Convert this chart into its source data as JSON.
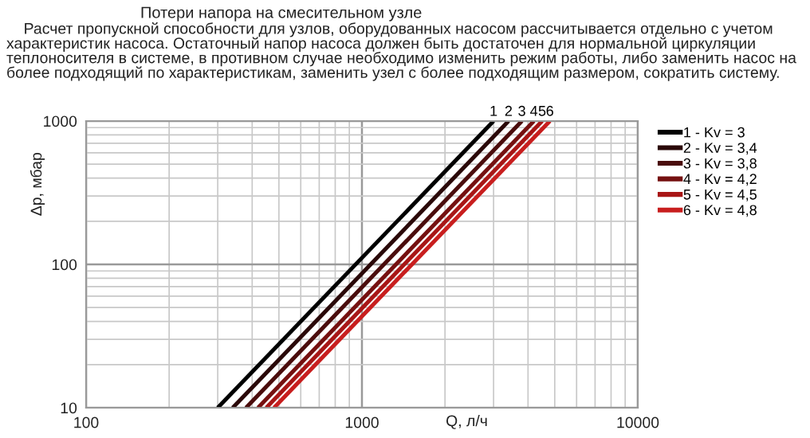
{
  "chart_data": {
    "type": "line",
    "title": "Потери напора на смесительном узле",
    "subtitle": "Расчет пропускной способности для узлов, оборудованных насосом рассчитывается отдельно с учетом характеристик насоса. Остаточный напор насоса должен быть достаточен для нормальной циркуляции теплоносителя в системе, в противном случае необходимо изменить режим работы, либо заменить насос на более подходящий по характеристикам, заменить узел с более подходящим размером, сократить систему.",
    "xlabel": "Q, л/ч",
    "ylabel": "Δp, мбар",
    "log": "xy",
    "xlim": [
      100,
      10000
    ],
    "ylim": [
      10,
      1000
    ],
    "xticks": [
      100,
      1000,
      10000
    ],
    "yticks": [
      10,
      100,
      1000
    ],
    "grid": true,
    "legend": "right",
    "marker": "none",
    "line_style": "solid",
    "series": [
      {
        "name": "1 - Kv = 3",
        "color": "#000000",
        "x": [
          300,
          3000
        ],
        "values": [
          10,
          1000
        ]
      },
      {
        "name": "2 - Kv = 3,4",
        "color": "#2a0808",
        "x": [
          340,
          3400
        ],
        "values": [
          10,
          1000
        ]
      },
      {
        "name": "3 - Kv = 3,8",
        "color": "#4a0c0c",
        "x": [
          380,
          3800
        ],
        "values": [
          10,
          1000
        ]
      },
      {
        "name": "4 - Kv = 4,2",
        "color": "#751010",
        "x": [
          420,
          4200
        ],
        "values": [
          10,
          1000
        ]
      },
      {
        "name": "5 - Kv = 4,5",
        "color": "#a81616",
        "x": [
          450,
          4500
        ],
        "values": [
          10,
          1000
        ]
      },
      {
        "name": "6 - Kv = 4,8",
        "color": "#c81e1e",
        "x": [
          480,
          4800
        ],
        "values": [
          10,
          1000
        ]
      }
    ],
    "annotations": [
      {
        "text": "1",
        "x": 3000,
        "y": 1000
      },
      {
        "text": "2",
        "x": 3400,
        "y": 1000
      },
      {
        "text": "3",
        "x": 3800,
        "y": 1000
      },
      {
        "text": "4",
        "x": 4200,
        "y": 1000
      },
      {
        "text": "5",
        "x": 4500,
        "y": 1000
      },
      {
        "text": "6",
        "x": 4800,
        "y": 1000
      }
    ]
  }
}
